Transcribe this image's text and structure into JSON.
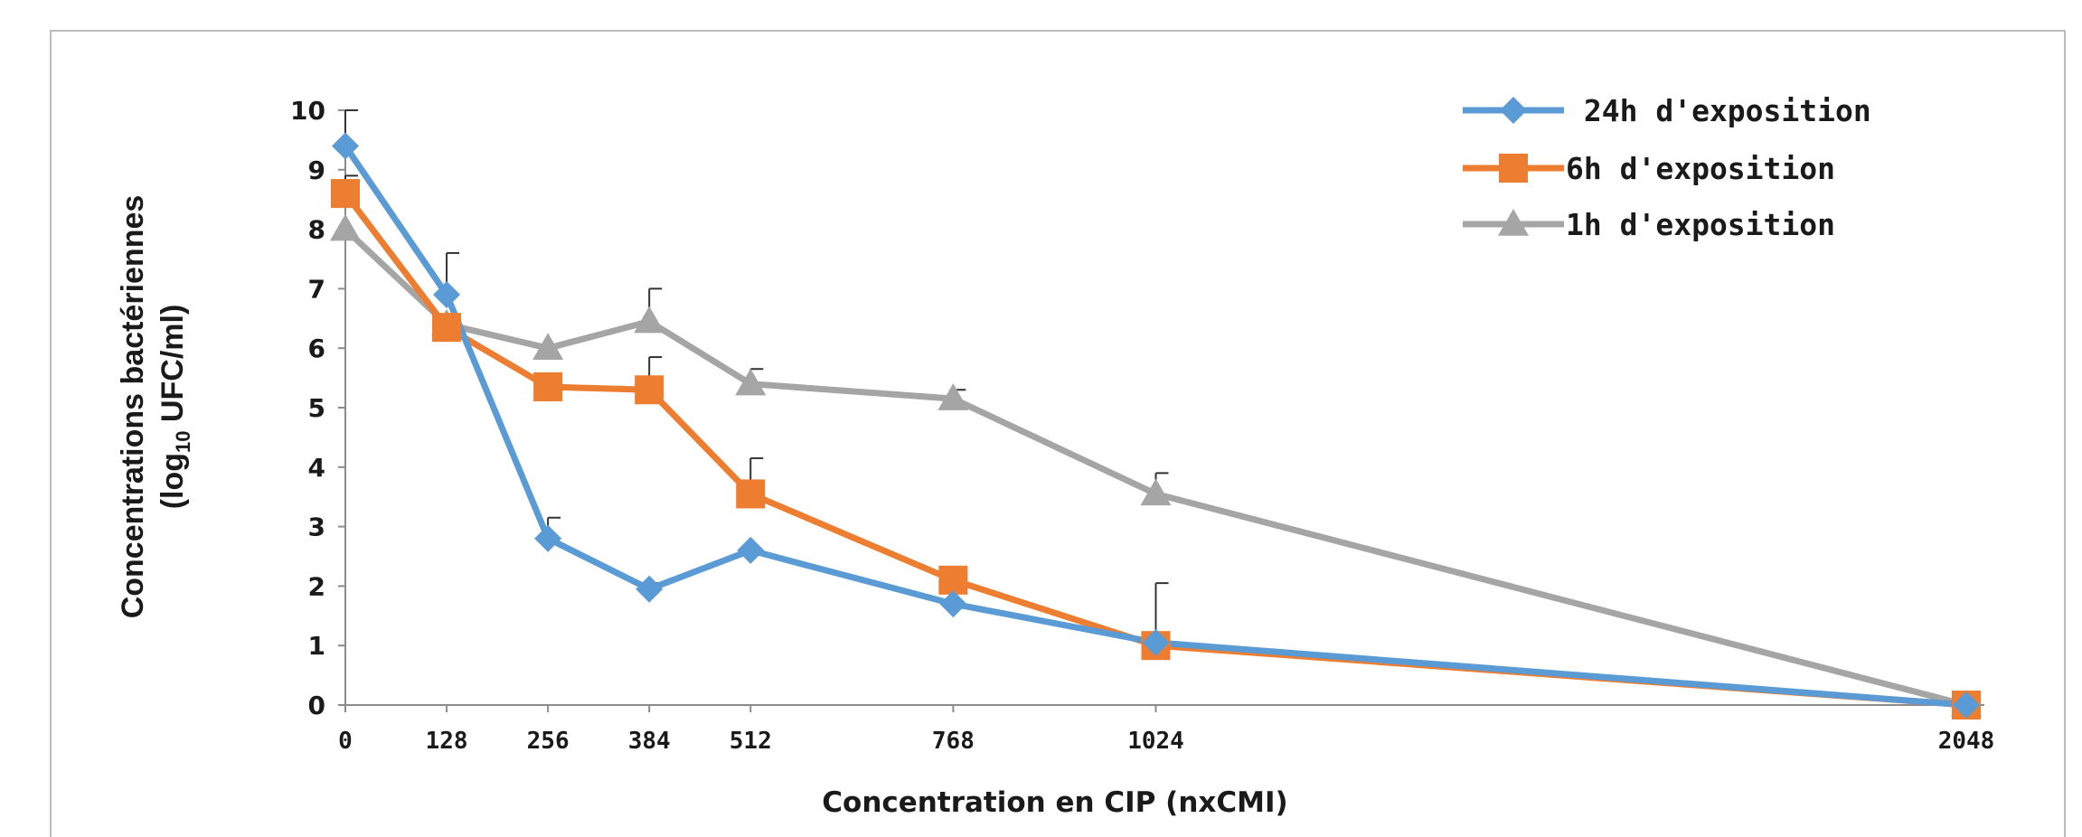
{
  "chart_data": {
    "type": "line",
    "title": "",
    "xlabel": "Concentration en CIP (nxCMI)",
    "ylabel_line1": "Concentrations bactériennes",
    "ylabel_line2_prefix": "(log",
    "ylabel_line2_sub": "10",
    "ylabel_line2_suffix": " UFC/ml)",
    "x_categories": [
      "0",
      "128",
      "256",
      "384",
      "512",
      "768",
      "1024",
      "2048"
    ],
    "x": [
      0,
      128,
      256,
      384,
      512,
      768,
      1024,
      2048
    ],
    "ylim": [
      0,
      10
    ],
    "yticks": [
      "0",
      "1",
      "2",
      "3",
      "4",
      "5",
      "6",
      "7",
      "8",
      "9",
      "10"
    ],
    "grid": false,
    "legend_position": "top-right",
    "series": [
      {
        "name": "24h d'exposition",
        "legend_label": " 24h d'exposition",
        "color": "#5b9bd5",
        "marker": "diamond",
        "values": [
          9.4,
          6.9,
          2.8,
          1.95,
          2.6,
          1.7,
          1.05,
          0
        ],
        "errors": [
          0.6,
          0.7,
          0.35,
          0.1,
          0.0,
          0.0,
          0.0,
          0.0
        ]
      },
      {
        "name": "6h d'exposition",
        "legend_label": "6h d'exposition",
        "color": "#ed7d31",
        "marker": "square",
        "values": [
          8.6,
          6.35,
          5.35,
          5.3,
          3.55,
          2.1,
          1.0,
          0
        ],
        "errors": [
          0.3,
          0.0,
          0.0,
          0.55,
          0.6,
          0.2,
          1.05,
          0.0
        ]
      },
      {
        "name": "1h d'exposition",
        "legend_label": "1h d'exposition",
        "color": "#a5a5a5",
        "marker": "triangle",
        "values": [
          8.0,
          6.4,
          6.0,
          6.45,
          5.4,
          5.15,
          3.55,
          0
        ],
        "errors": [
          0.0,
          0.0,
          0.0,
          0.55,
          0.25,
          0.15,
          0.35,
          0.0
        ]
      }
    ]
  }
}
